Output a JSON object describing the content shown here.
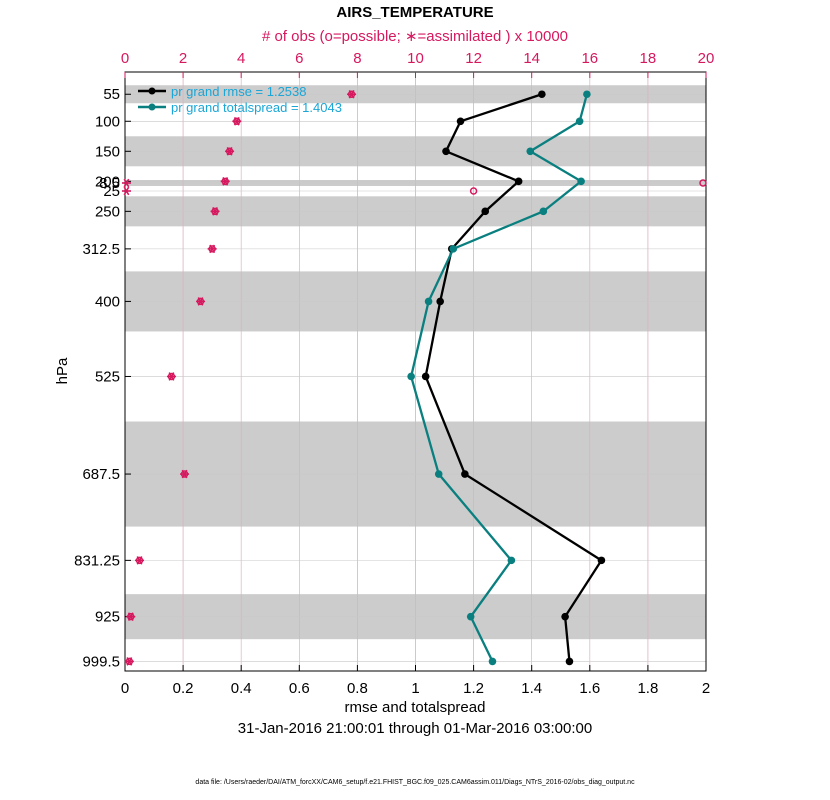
{
  "colors": {
    "rmse": "#000000",
    "spread": "#0a7f7f",
    "obs": "#d6185f",
    "band": "#cccccc",
    "grid": "#c8c8c8",
    "legend_text": "#1aa6d6"
  },
  "chart_data": {
    "type": "line",
    "title": "AIRS_TEMPERATURE",
    "top_axis_label": "# of obs (o=possible; ∗=assimilated ) x 10000",
    "xlabel": "rmse and totalspread",
    "ylabel": "hPa",
    "date_range": "31-Jan-2016 21:00:01 through 01-Mar-2016 03:00:00",
    "data_file": "data file: /Users/raeder/DAI/ATM_forcXX/CAM6_setup/f.e21.FHIST_BGC.f09_025.CAM6assim.011/Diags_NTrS_2016-02/obs_diag_output.nc",
    "xlim": [
      0,
      2
    ],
    "x_ticks": [
      "0",
      "0.2",
      "0.4",
      "0.6",
      "0.8",
      "1",
      "1.2",
      "1.4",
      "1.6",
      "1.8",
      "2"
    ],
    "top_xlim": [
      0,
      20
    ],
    "top_ticks": [
      "0",
      "2",
      "4",
      "6",
      "8",
      "10",
      "12",
      "14",
      "16",
      "18",
      "20"
    ],
    "levels": [
      8.5,
      25,
      55,
      100,
      150,
      200,
      250,
      312.5,
      400,
      525,
      687.5,
      831.25,
      925,
      999.5
    ],
    "level_labels": [
      "8.5",
      "25",
      "55",
      "100",
      "150",
      "200",
      "250",
      "312.5",
      "400",
      "525",
      "687.5",
      "831.25",
      "925",
      "999.5"
    ],
    "level_edges": [
      0,
      20,
      40,
      70,
      125,
      175,
      225,
      275,
      350,
      450,
      600,
      775,
      887.5,
      962.5,
      1037
    ],
    "series": [
      {
        "name": "rmse",
        "legend": "pr grand rmse = 1.2538",
        "values": [
          null,
          null,
          1.435,
          1.155,
          1.105,
          1.355,
          1.24,
          1.125,
          1.085,
          1.035,
          1.17,
          1.64,
          1.515,
          1.53
        ]
      },
      {
        "name": "totalspread",
        "legend": "pr grand totalspread = 1.4043",
        "values": [
          null,
          null,
          1.59,
          1.565,
          1.395,
          1.57,
          1.44,
          1.13,
          1.045,
          0.985,
          1.08,
          1.33,
          1.19,
          1.265
        ]
      }
    ],
    "obs_possible": [
      20.0,
      12.0,
      7.8,
      3.85,
      3.6,
      3.45,
      3.1,
      3.0,
      2.6,
      1.6,
      2.05,
      0.5,
      0.2,
      0.15
    ],
    "obs_assimilated": [
      0.05,
      0.05,
      7.8,
      3.85,
      3.6,
      3.45,
      3.1,
      3.0,
      2.6,
      1.6,
      2.05,
      0.5,
      0.2,
      0.15
    ]
  }
}
